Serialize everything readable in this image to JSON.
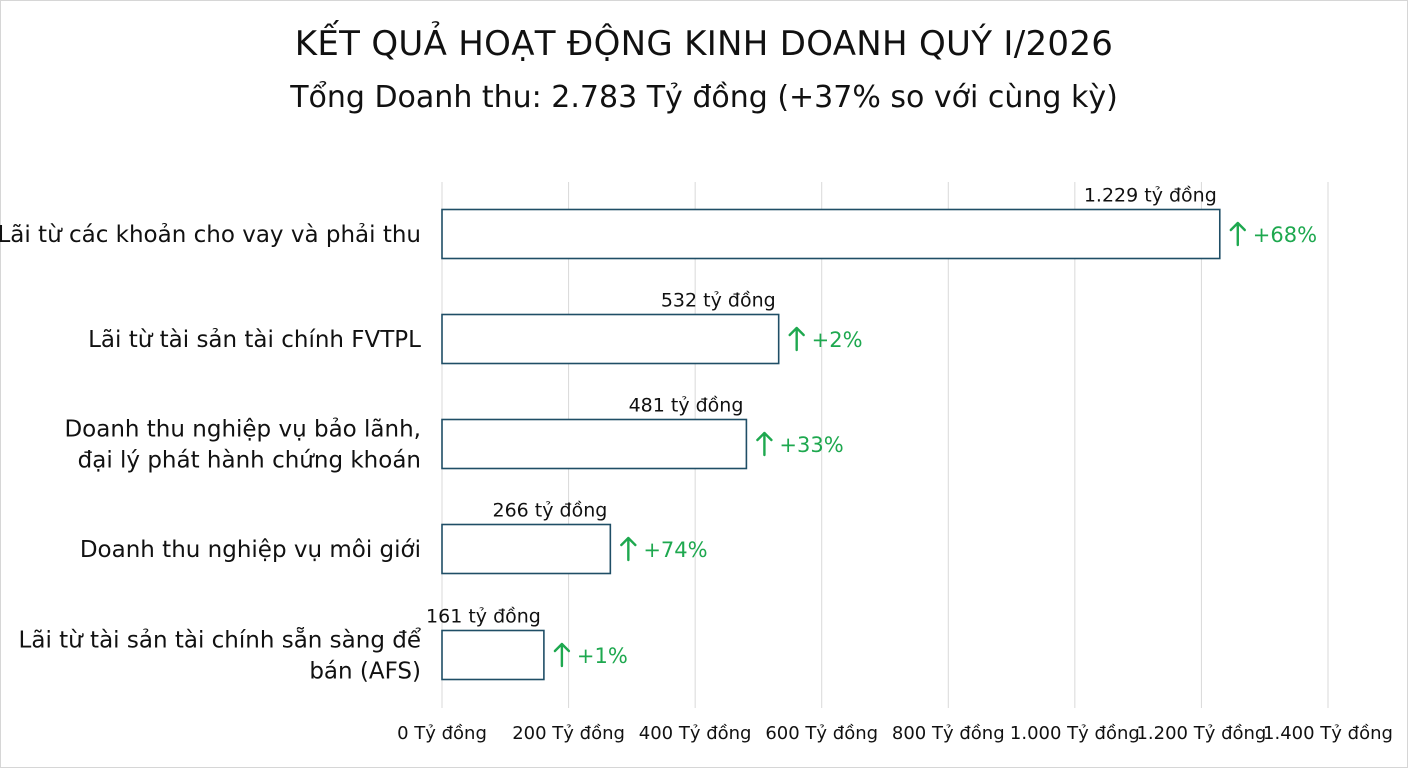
{
  "header": {
    "title": "KẾT QUẢ HOẠT ĐỘNG KINH DOANH QUÝ I/2026",
    "subtitle": "Tổng Doanh thu: 2.783 Tỷ đồng (+37% so với cùng kỳ)"
  },
  "colors": {
    "bar_stroke": "#1f4e66",
    "bar_fill": "#ffffff",
    "grid": "#d9d9d9",
    "positive_change": "#1ea84f",
    "text": "#111111"
  },
  "chart_data": {
    "type": "bar",
    "orientation": "horizontal",
    "categories": [
      [
        "Lãi từ các khoản cho vay và phải thu"
      ],
      [
        "Lãi từ tài sản tài chính FVTPL"
      ],
      [
        "Doanh thu nghiệp vụ bảo lãnh,",
        "đại lý phát hành chứng khoán"
      ],
      [
        "Doanh thu nghiệp vụ môi giới"
      ],
      [
        "Lãi từ tài sản tài chính sẵn sàng để",
        "bán (AFS)"
      ]
    ],
    "values": [
      1229,
      532,
      481,
      266,
      161
    ],
    "value_labels": [
      "1.229 tỷ đồng",
      "532 tỷ đồng",
      "481 tỷ đồng",
      "266 tỷ đồng",
      "161 tỷ đồng"
    ],
    "changes": [
      "+68%",
      "+2%",
      "+33%",
      "+74%",
      "+1%"
    ],
    "change_icon": "arrow-up-icon",
    "xlim": [
      0,
      1400
    ],
    "x_ticks": [
      0,
      200,
      400,
      600,
      800,
      1000,
      1200,
      1400
    ],
    "x_tick_labels": [
      "0 Tỷ đồng",
      "200 Tỷ đồng",
      "400 Tỷ đồng",
      "600 Tỷ đồng",
      "800 Tỷ đồng",
      "1.000 Tỷ đồng",
      "1.200 Tỷ đồng",
      "1.400 Tỷ đồng"
    ],
    "grid": true,
    "legend": "none"
  }
}
